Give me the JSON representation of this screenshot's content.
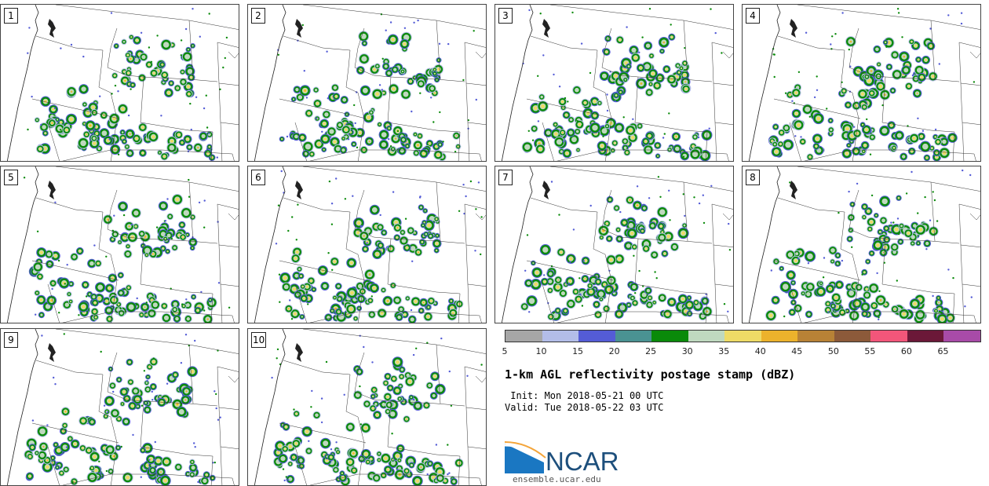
{
  "panels": [
    {
      "label": "1"
    },
    {
      "label": "2"
    },
    {
      "label": "3"
    },
    {
      "label": "4"
    },
    {
      "label": "5"
    },
    {
      "label": "6"
    },
    {
      "label": "7"
    },
    {
      "label": "8"
    },
    {
      "label": "9"
    },
    {
      "label": "10"
    }
  ],
  "colorbar": {
    "colors": [
      "#a6a6a6",
      "#b3bde8",
      "#545cd6",
      "#4a9292",
      "#0a8a0a",
      "#bfd9bf",
      "#eedb66",
      "#ecb22c",
      "#b88236",
      "#8c5a3a",
      "#f2567a",
      "#6b1838",
      "#a84ba8"
    ],
    "ticks": [
      "5",
      "10",
      "15",
      "20",
      "25",
      "30",
      "35",
      "40",
      "45",
      "50",
      "55",
      "60",
      "65"
    ]
  },
  "title": "1-km AGL reflectivity postage stamp (dBZ)",
  "init": " Init: Mon 2018-05-21 00 UTC",
  "valid": "Valid: Tue 2018-05-22 03 UTC",
  "logo": {
    "text": "NCAR",
    "url": "ensemble.ucar.edu"
  }
}
